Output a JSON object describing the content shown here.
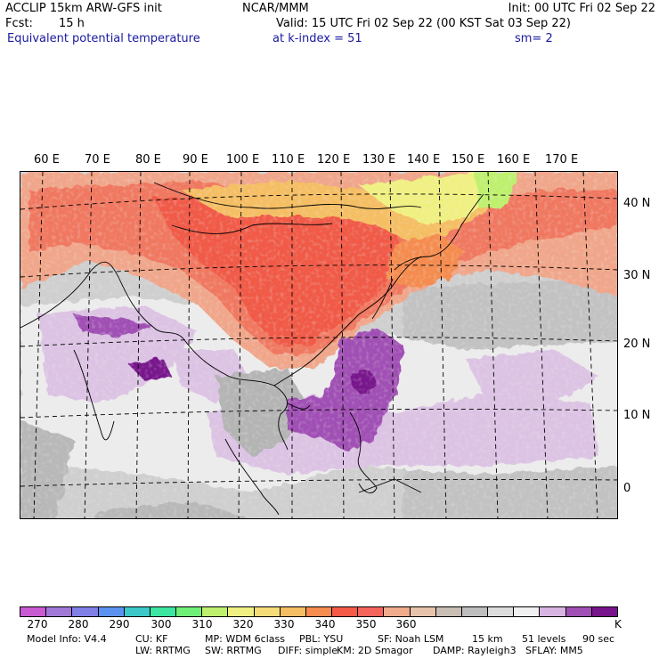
{
  "header": {
    "model_line": "ACCLIP 15km ARW-GFS init",
    "org": "NCAR/MMM",
    "init": "Init: 00 UTC Fri 02 Sep 22",
    "fcst_label": "Fcst:",
    "fcst_value": "15 h",
    "valid": "Valid: 15 UTC Fri 02 Sep 22 (00 KST Sat 03 Sep 22)",
    "field": "Equivalent potential temperature",
    "level": "at k-index =  51",
    "smooth": "sm= 2"
  },
  "map": {
    "longitude_labels": [
      "60 E",
      "70 E",
      "80 E",
      "90 E",
      "100 E",
      "110 E",
      "120 E",
      "130 E",
      "140 E",
      "150 E",
      "160 E",
      "170 E"
    ],
    "latitude_labels": [
      "40 N",
      "30 N",
      "20 N",
      "10 N",
      "0"
    ]
  },
  "colorbar": {
    "colors": [
      "#c85ad2",
      "#a178d6",
      "#8080e6",
      "#5b92f0",
      "#3cc8c8",
      "#3ce6a0",
      "#6ef078",
      "#bef06e",
      "#f0f082",
      "#f5dc78",
      "#f5be64",
      "#f58c50",
      "#f55a46",
      "#f5645a",
      "#f0aa8c",
      "#e6c3aa",
      "#c8beb4",
      "#bebebe",
      "#dcdcdc",
      "#f0f0f0",
      "#d8b4e2",
      "#a050b4",
      "#78148c"
    ],
    "tick_labels": [
      "270",
      "280",
      "290",
      "300",
      "310",
      "320",
      "330",
      "340",
      "350",
      "360"
    ],
    "unit": "K"
  },
  "footer": {
    "line1": [
      "Model Info: V4.4",
      "CU: KF",
      "MP: WDM 6class",
      "PBL: YSU",
      "SF: Noah LSM",
      "15 km",
      "51 levels",
      "90 sec"
    ],
    "line2": [
      "LW: RRTMG",
      "SW: RRTMG",
      "DIFF: simple",
      "KM: 2D Smagor",
      "DAMP: Rayleigh3",
      "SFLAY: MM5"
    ]
  }
}
